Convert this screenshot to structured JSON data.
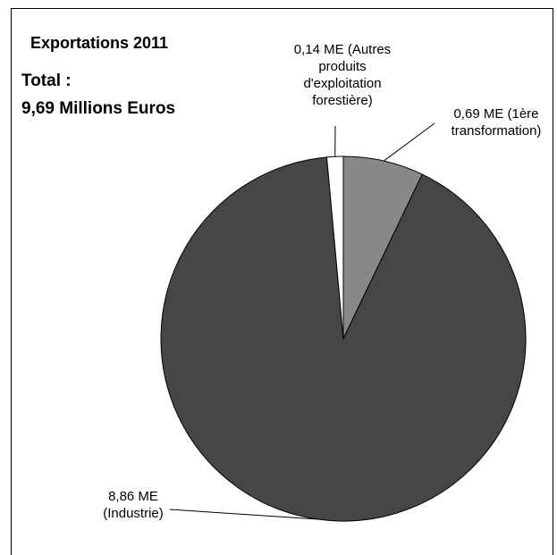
{
  "chart_data": {
    "type": "pie",
    "title": "Exportations 2011",
    "total_label": "Total :",
    "total_value": "9,69 Millions Euros",
    "slices": [
      {
        "name": "1ère transformation",
        "value": 0.69,
        "label_lines": [
          "0,69 ME (1ère",
          "transformation)"
        ],
        "color": "#888888"
      },
      {
        "name": "Industrie",
        "value": 8.86,
        "label_lines": [
          "8,86 ME",
          "(Industrie)"
        ],
        "color": "#464646"
      },
      {
        "name": "Autres produits d'exploitation forestière",
        "value": 0.14,
        "label_lines": [
          "0,14 ME (Autres",
          "produits",
          "d'exploitation",
          "forestière)"
        ],
        "color": "#ffffff"
      }
    ]
  }
}
